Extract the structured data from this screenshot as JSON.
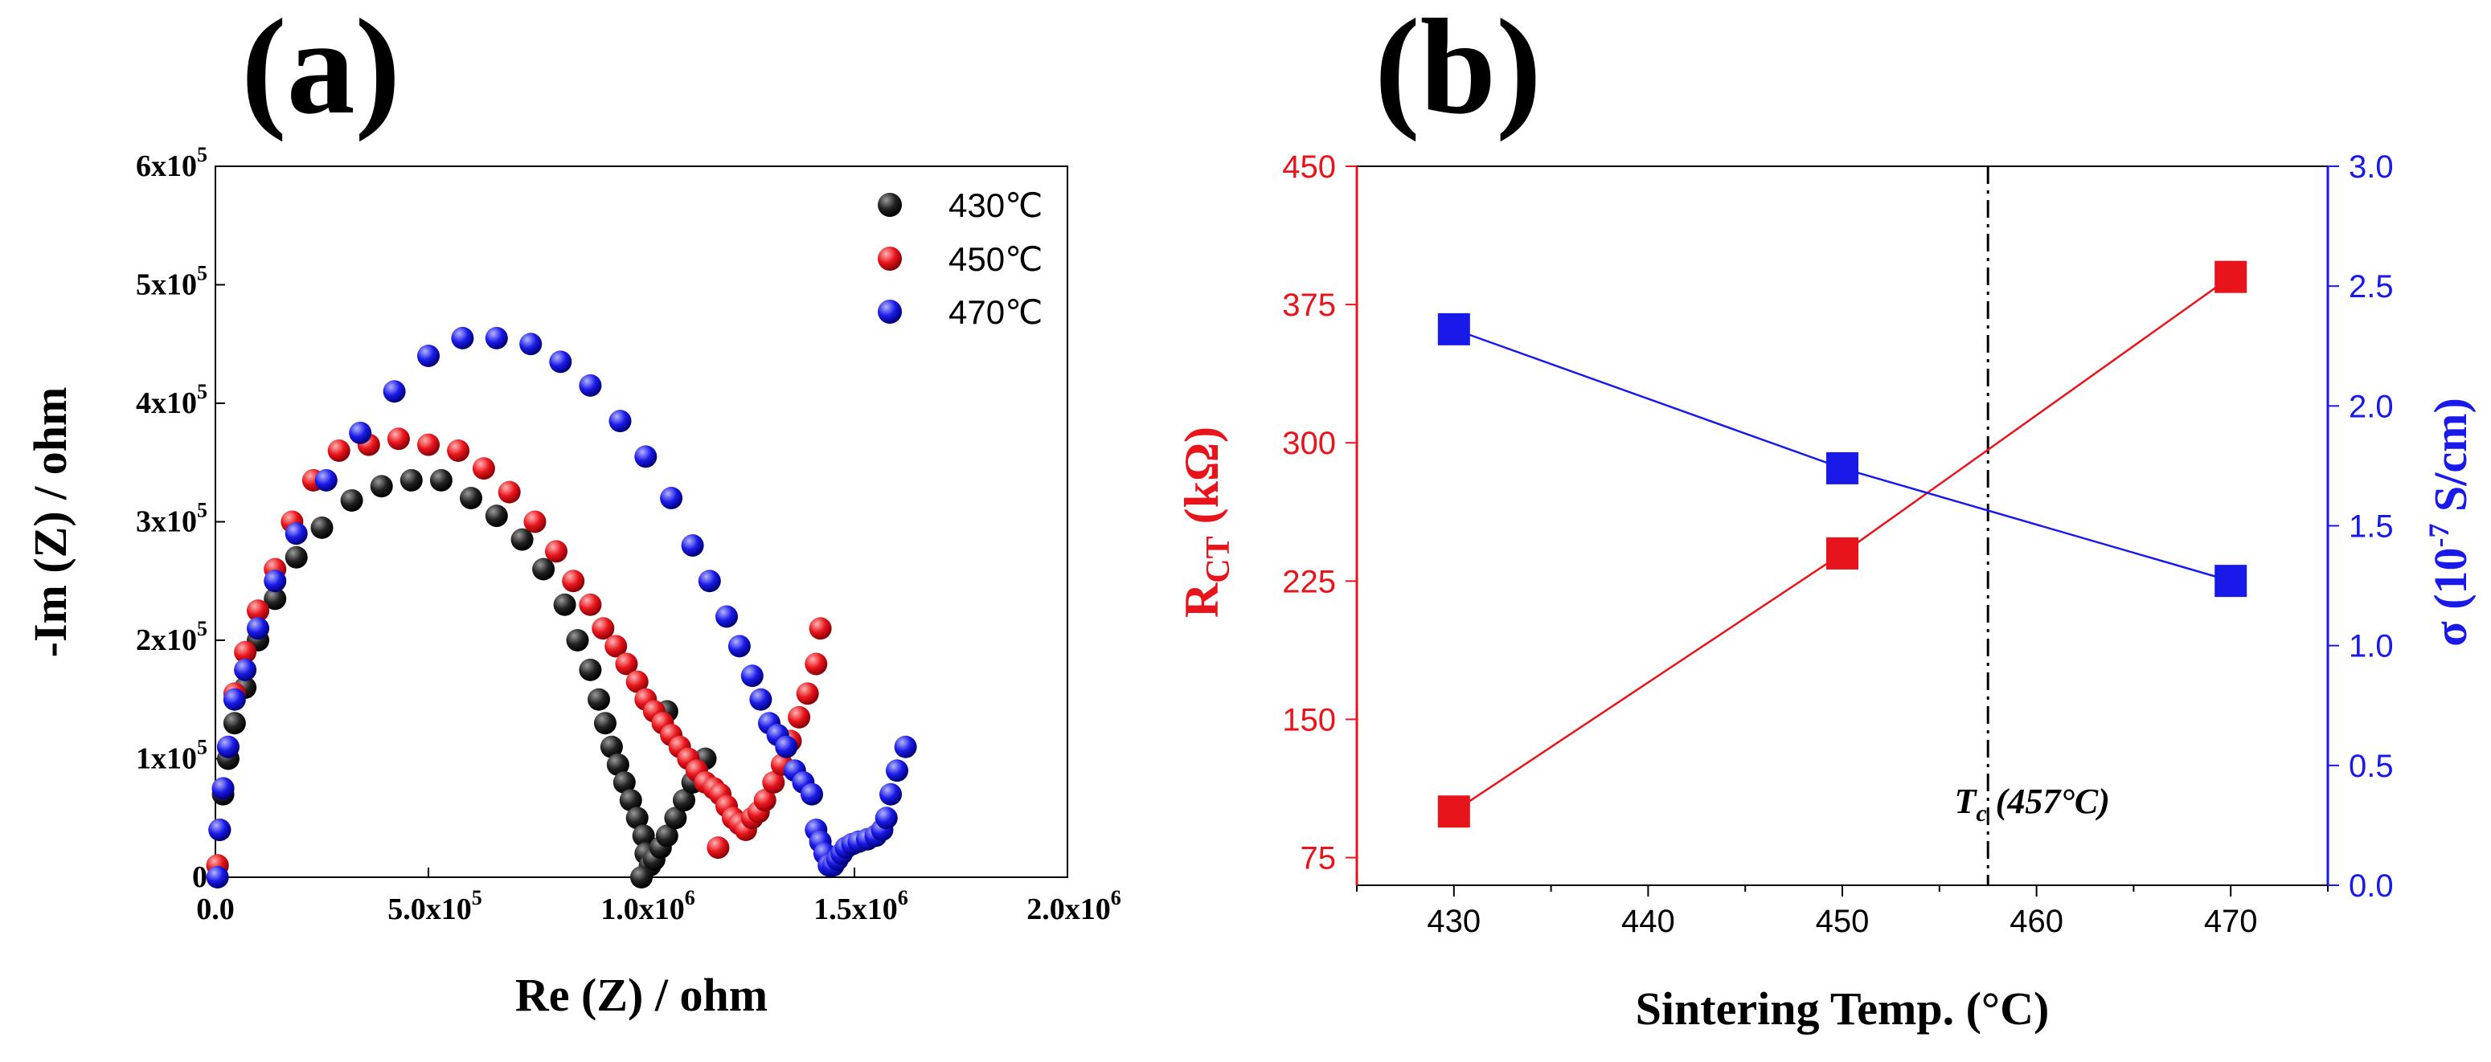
{
  "chart_data": [
    {
      "panel_label": "(a)",
      "type": "scatter",
      "xlabel_main": "Re (Z) / ohm",
      "ylabel_main": "-Im (Z) / ohm",
      "xlim": [
        0,
        2000000
      ],
      "ylim": [
        0,
        600000
      ],
      "x_ticks": [
        {
          "value": 0,
          "mantissa": "0.0",
          "exp": ""
        },
        {
          "value": 500000,
          "mantissa": "5.0x10",
          "exp": "5"
        },
        {
          "value": 1000000,
          "mantissa": "1.0x10",
          "exp": "6"
        },
        {
          "value": 1500000,
          "mantissa": "1.5x10",
          "exp": "6"
        },
        {
          "value": 2000000,
          "mantissa": "2.0x10",
          "exp": "6"
        }
      ],
      "y_ticks": [
        {
          "value": 0,
          "mantissa": "0",
          "exp": ""
        },
        {
          "value": 100000,
          "mantissa": "1x10",
          "exp": "5"
        },
        {
          "value": 200000,
          "mantissa": "2x10",
          "exp": "5"
        },
        {
          "value": 300000,
          "mantissa": "3x10",
          "exp": "5"
        },
        {
          "value": 400000,
          "mantissa": "4x10",
          "exp": "5"
        },
        {
          "value": 500000,
          "mantissa": "5x10",
          "exp": "5"
        },
        {
          "value": 600000,
          "mantissa": "6x10",
          "exp": "5"
        }
      ],
      "legend_position": "top-right",
      "series": [
        {
          "name": "430℃",
          "color": "#1a1a1a",
          "x": [
            5000,
            10000,
            18000,
            30000,
            45000,
            70000,
            100000,
            140000,
            190000,
            250000,
            320000,
            390000,
            460000,
            530000,
            600000,
            660000,
            720000,
            770000,
            820000,
            850000,
            880000,
            900000,
            915000,
            930000,
            945000,
            960000,
            975000,
            990000,
            1005000,
            1010000,
            1020000,
            1030000,
            1045000,
            1060000,
            1080000,
            1100000,
            1120000,
            1150000,
            1060000,
            1000000
          ],
          "y": [
            10000,
            40000,
            70000,
            100000,
            130000,
            160000,
            200000,
            235000,
            270000,
            295000,
            318000,
            330000,
            335000,
            335000,
            320000,
            305000,
            285000,
            260000,
            230000,
            200000,
            175000,
            150000,
            130000,
            110000,
            95000,
            80000,
            65000,
            50000,
            35000,
            20000,
            10000,
            15000,
            25000,
            35000,
            50000,
            65000,
            80000,
            100000,
            140000,
            0
          ]
        },
        {
          "name": "450℃",
          "color": "#e8141b",
          "x": [
            5000,
            10000,
            18000,
            30000,
            45000,
            70000,
            100000,
            140000,
            180000,
            230000,
            290000,
            360000,
            430000,
            500000,
            570000,
            630000,
            690000,
            750000,
            800000,
            840000,
            880000,
            910000,
            940000,
            965000,
            990000,
            1010000,
            1030000,
            1050000,
            1070000,
            1090000,
            1110000,
            1130000,
            1150000,
            1170000,
            1185000,
            1200000,
            1215000,
            1230000,
            1245000,
            1260000,
            1275000,
            1290000,
            1310000,
            1330000,
            1350000,
            1370000,
            1390000,
            1410000,
            1420000,
            1180000
          ],
          "y": [
            10000,
            40000,
            75000,
            110000,
            155000,
            190000,
            225000,
            260000,
            300000,
            335000,
            360000,
            365000,
            370000,
            365000,
            360000,
            345000,
            325000,
            300000,
            275000,
            250000,
            230000,
            210000,
            195000,
            180000,
            165000,
            150000,
            140000,
            130000,
            120000,
            110000,
            100000,
            90000,
            80000,
            75000,
            70000,
            60000,
            50000,
            45000,
            40000,
            50000,
            55000,
            65000,
            80000,
            95000,
            115000,
            135000,
            155000,
            180000,
            210000,
            25000
          ]
        },
        {
          "name": "470℃",
          "color": "#1a1ae8",
          "x": [
            5000,
            10000,
            18000,
            30000,
            45000,
            70000,
            100000,
            140000,
            190000,
            260000,
            340000,
            420000,
            500000,
            580000,
            660000,
            740000,
            810000,
            880000,
            950000,
            1010000,
            1070000,
            1120000,
            1160000,
            1200000,
            1230000,
            1260000,
            1280000,
            1300000,
            1320000,
            1340000,
            1360000,
            1380000,
            1400000,
            1410000,
            1420000,
            1430000,
            1440000,
            1450000,
            1460000,
            1470000,
            1480000,
            1495000,
            1510000,
            1530000,
            1550000,
            1565000,
            1575000,
            1585000,
            1600000,
            1620000
          ],
          "y": [
            0,
            40000,
            75000,
            110000,
            150000,
            175000,
            210000,
            250000,
            290000,
            335000,
            375000,
            410000,
            440000,
            455000,
            455000,
            450000,
            435000,
            415000,
            385000,
            355000,
            320000,
            280000,
            250000,
            220000,
            195000,
            170000,
            150000,
            130000,
            120000,
            110000,
            90000,
            80000,
            70000,
            40000,
            30000,
            20000,
            10000,
            10000,
            15000,
            20000,
            25000,
            28000,
            30000,
            32000,
            35000,
            40000,
            50000,
            70000,
            90000,
            110000
          ]
        }
      ]
    },
    {
      "panel_label": "(b)",
      "type": "line",
      "xlabel": "Sintering Temp. (°C)",
      "ylabel_left_main": "R",
      "ylabel_left_sub": "CT",
      "ylabel_left_rest": " (kΩ)",
      "ylabel_right_main": "σ (10",
      "ylabel_right_sup": "-7",
      "ylabel_right_rest": " S/cm)",
      "xlim": [
        425,
        475
      ],
      "x_ticks": [
        430,
        440,
        450,
        460,
        470
      ],
      "ylim_left": [
        60,
        450
      ],
      "y_ticks_left": [
        75,
        150,
        225,
        300,
        375,
        450
      ],
      "ylim_right": [
        0,
        3.0
      ],
      "y_ticks_right": [
        "0.0",
        "0.5",
        "1.0",
        "1.5",
        "2.0",
        "2.5",
        "3.0"
      ],
      "vline": {
        "x": 457.5,
        "label_main": "T",
        "label_sub": "c",
        "label_rest": " (457°C)"
      },
      "series": [
        {
          "name": "RCT",
          "axis": "left",
          "color": "#e8141b",
          "x": [
            430,
            450,
            470
          ],
          "values": [
            100,
            240,
            390
          ]
        },
        {
          "name": "σ",
          "axis": "right",
          "color": "#1a1ae8",
          "x": [
            430,
            450,
            470
          ],
          "values": [
            2.32,
            1.74,
            1.27
          ]
        }
      ]
    }
  ]
}
